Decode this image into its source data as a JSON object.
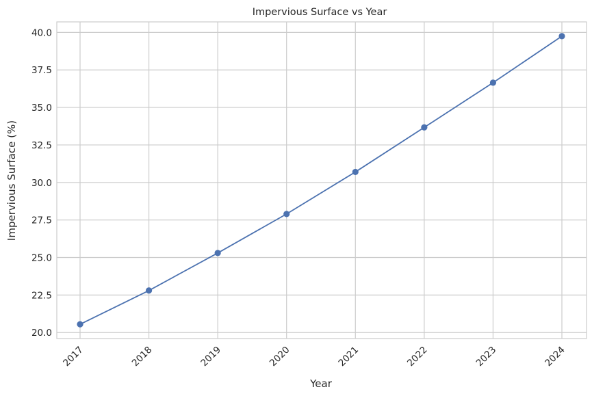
{
  "chart_data": {
    "type": "line",
    "title": "Impervious Surface vs Year",
    "xlabel": "Year",
    "ylabel": "Impervious Surface (%)",
    "x": [
      2017,
      2018,
      2019,
      2020,
      2021,
      2022,
      2023,
      2024
    ],
    "x_tick_labels": [
      "2017",
      "2018",
      "2019",
      "2020",
      "2021",
      "2022",
      "2023",
      "2024"
    ],
    "y_tick_labels": [
      "20.0",
      "22.5",
      "25.0",
      "27.5",
      "30.0",
      "32.5",
      "35.0",
      "37.5",
      "40.0"
    ],
    "ylim": [
      19.6,
      40.7
    ],
    "series": [
      {
        "values": [
          20.55,
          22.8,
          25.3,
          27.9,
          30.7,
          33.67,
          36.65,
          39.75
        ],
        "color": "#4c72b0",
        "marker": "circle"
      }
    ],
    "grid": true,
    "x_tick_rotation": 45
  }
}
